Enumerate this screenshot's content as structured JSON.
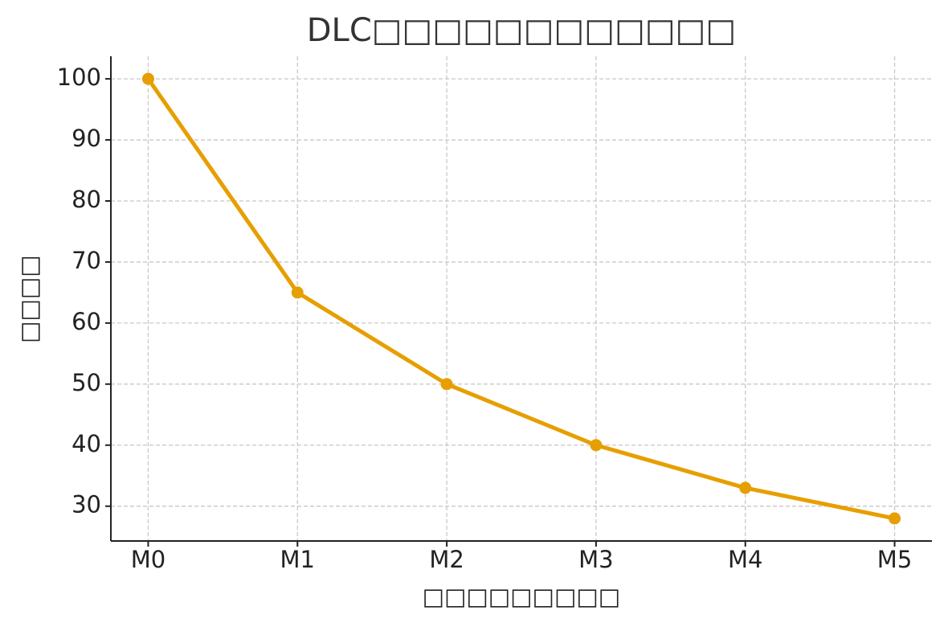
{
  "chart_data": {
    "type": "line",
    "title": "DLC□□□□□□□□□□□□",
    "x_label": "□□□□□□□□□",
    "y_label": "□□□□",
    "categories": [
      "M0",
      "M1",
      "M2",
      "M3",
      "M4",
      "M5"
    ],
    "values": [
      100,
      65,
      50,
      40,
      33,
      28
    ],
    "color": "#e69f00",
    "ylim": [
      24.3,
      103.7
    ],
    "yticks": [
      30,
      40,
      50,
      60,
      70,
      80,
      90,
      100
    ],
    "grid": true
  }
}
